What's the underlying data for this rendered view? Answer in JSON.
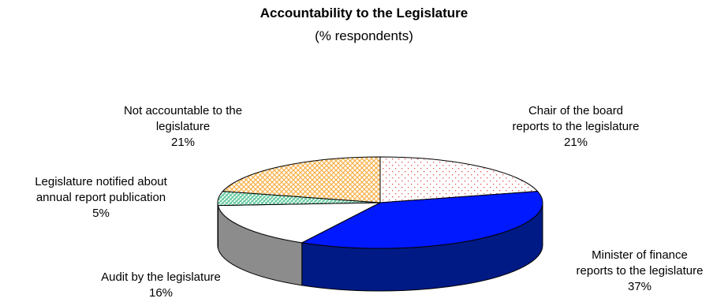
{
  "chart_data": {
    "type": "pie",
    "title": "Accountability to the Legislature",
    "subtitle": "(% respondents)",
    "slices": [
      {
        "label_lines": [
          "Chair of the board",
          "reports to the legislature"
        ],
        "value": 21,
        "value_label": "21%",
        "color": "#ffffff",
        "pattern": "red-dots"
      },
      {
        "label_lines": [
          "Minister of finance",
          "reports to the legislature"
        ],
        "value": 37,
        "value_label": "37%",
        "color": "#0019ff"
      },
      {
        "label_lines": [
          "Audit by the legislature"
        ],
        "value": 16,
        "value_label": "16%",
        "color": "#ffffff"
      },
      {
        "label_lines": [
          "Legislature notified about",
          "annual report publication"
        ],
        "value": 5,
        "value_label": "5%",
        "color": "#7fe0b0",
        "pattern": "crosshatch"
      },
      {
        "label_lines": [
          "Not accountable to the",
          "legislature"
        ],
        "value": 21,
        "value_label": "21%",
        "color": "#ffc878",
        "pattern": "crosshatch"
      }
    ]
  }
}
